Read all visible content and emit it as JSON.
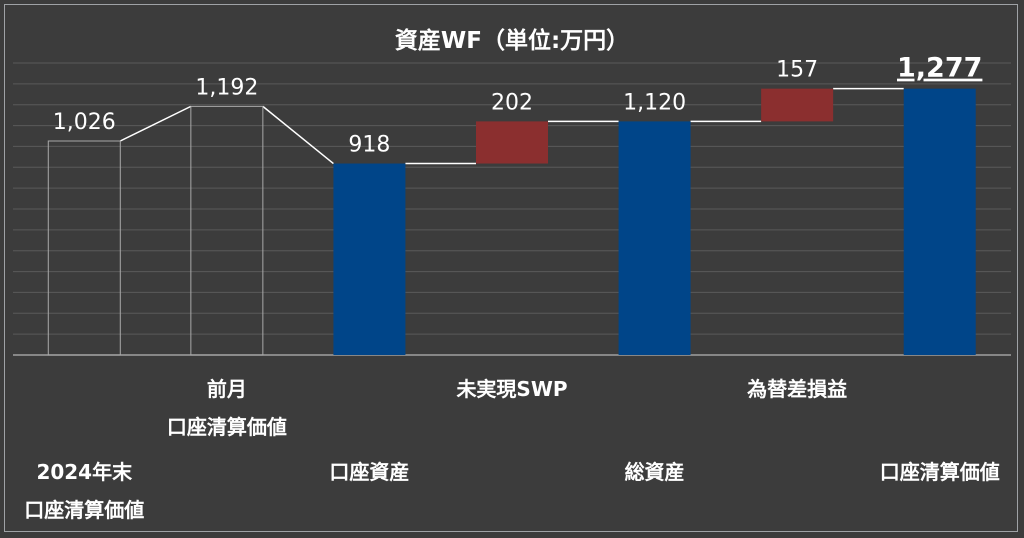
{
  "chart_data": {
    "type": "bar",
    "title": "資産WF（単位:万円）",
    "xlabel": "",
    "ylabel": "",
    "ylim": [
      0,
      1400
    ],
    "grid": true,
    "categories": [
      [
        "2024年末",
        "口座清算価値"
      ],
      [
        "前月",
        "口座清算価値"
      ],
      [
        "口座資産"
      ],
      [
        "未実現SWP"
      ],
      [
        "総資産"
      ],
      [
        "為替差損益"
      ],
      [
        "口座清算価値"
      ]
    ],
    "bars": [
      {
        "kind": "outline",
        "base": 0,
        "value": 1026,
        "label": "1,026"
      },
      {
        "kind": "outline",
        "base": 0,
        "value": 1192,
        "label": "1,192"
      },
      {
        "kind": "total",
        "base": 0,
        "value": 918,
        "label": "918"
      },
      {
        "kind": "increase",
        "base": 918,
        "value": 202,
        "label": "202"
      },
      {
        "kind": "total",
        "base": 0,
        "value": 1120,
        "label": "1,120"
      },
      {
        "kind": "increase",
        "base": 1120,
        "value": 157,
        "label": "157"
      },
      {
        "kind": "total",
        "base": 0,
        "value": 1277,
        "label": "1,277",
        "emphasis": true
      }
    ],
    "colors": {
      "total": "#004589",
      "increase": "#8b2f2f",
      "outline": "#a9a9a9",
      "connector": "#ffffff",
      "grid": "#5a5a5a",
      "axis": "#a0a0a0"
    }
  }
}
